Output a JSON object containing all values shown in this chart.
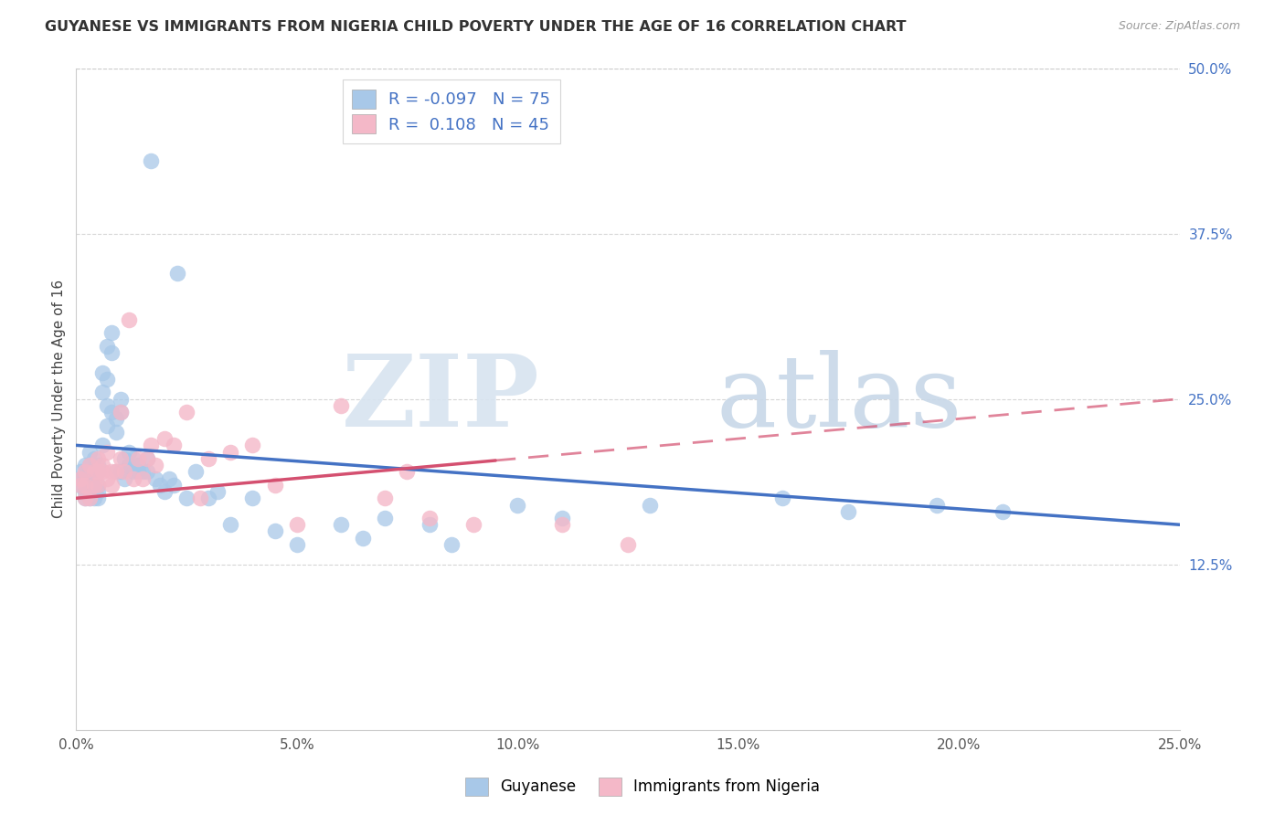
{
  "title": "GUYANESE VS IMMIGRANTS FROM NIGERIA CHILD POVERTY UNDER THE AGE OF 16 CORRELATION CHART",
  "source": "Source: ZipAtlas.com",
  "ylabel": "Child Poverty Under the Age of 16",
  "xlabel_ticks": [
    "0.0%",
    "5.0%",
    "10.0%",
    "15.0%",
    "20.0%",
    "25.0%"
  ],
  "ylabel_ticks_right": [
    "12.5%",
    "25.0%",
    "37.5%",
    "50.0%"
  ],
  "xlim": [
    0.0,
    0.25
  ],
  "ylim": [
    0.0,
    0.5
  ],
  "legend_label1": "Guyanese",
  "legend_label2": "Immigrants from Nigeria",
  "R1": "-0.097",
  "N1": "75",
  "R2": "0.108",
  "N2": "45",
  "color1": "#a8c8e8",
  "color2": "#f4b8c8",
  "line_color1": "#4472c4",
  "line_color2": "#d45070",
  "background_color": "#ffffff",
  "grid_color": "#cccccc",
  "guyanese_x": [
    0.001,
    0.001,
    0.001,
    0.002,
    0.002,
    0.002,
    0.002,
    0.003,
    0.003,
    0.003,
    0.003,
    0.003,
    0.004,
    0.004,
    0.004,
    0.004,
    0.005,
    0.005,
    0.005,
    0.005,
    0.005,
    0.006,
    0.006,
    0.006,
    0.007,
    0.007,
    0.007,
    0.007,
    0.008,
    0.008,
    0.008,
    0.009,
    0.009,
    0.009,
    0.01,
    0.01,
    0.01,
    0.011,
    0.011,
    0.012,
    0.012,
    0.013,
    0.013,
    0.014,
    0.014,
    0.015,
    0.016,
    0.016,
    0.017,
    0.018,
    0.019,
    0.02,
    0.021,
    0.022,
    0.023,
    0.025,
    0.027,
    0.03,
    0.032,
    0.035,
    0.04,
    0.045,
    0.05,
    0.06,
    0.065,
    0.07,
    0.08,
    0.085,
    0.1,
    0.11,
    0.13,
    0.16,
    0.175,
    0.195,
    0.21
  ],
  "guyanese_y": [
    0.19,
    0.195,
    0.185,
    0.18,
    0.175,
    0.19,
    0.2,
    0.185,
    0.175,
    0.195,
    0.2,
    0.21,
    0.185,
    0.195,
    0.205,
    0.175,
    0.195,
    0.2,
    0.18,
    0.185,
    0.175,
    0.27,
    0.255,
    0.215,
    0.29,
    0.23,
    0.265,
    0.245,
    0.3,
    0.285,
    0.24,
    0.195,
    0.235,
    0.225,
    0.195,
    0.24,
    0.25,
    0.205,
    0.19,
    0.2,
    0.21,
    0.195,
    0.205,
    0.195,
    0.2,
    0.195,
    0.195,
    0.205,
    0.43,
    0.19,
    0.185,
    0.18,
    0.19,
    0.185,
    0.345,
    0.175,
    0.195,
    0.175,
    0.18,
    0.155,
    0.175,
    0.15,
    0.14,
    0.155,
    0.145,
    0.16,
    0.155,
    0.14,
    0.17,
    0.16,
    0.17,
    0.175,
    0.165,
    0.17,
    0.165
  ],
  "nigeria_x": [
    0.001,
    0.001,
    0.002,
    0.002,
    0.002,
    0.003,
    0.003,
    0.004,
    0.004,
    0.005,
    0.005,
    0.005,
    0.006,
    0.006,
    0.007,
    0.007,
    0.008,
    0.008,
    0.009,
    0.01,
    0.01,
    0.011,
    0.012,
    0.013,
    0.014,
    0.015,
    0.016,
    0.017,
    0.018,
    0.02,
    0.022,
    0.025,
    0.028,
    0.03,
    0.035,
    0.04,
    0.045,
    0.05,
    0.06,
    0.07,
    0.075,
    0.08,
    0.09,
    0.11,
    0.125
  ],
  "nigeria_y": [
    0.19,
    0.185,
    0.175,
    0.195,
    0.185,
    0.175,
    0.2,
    0.185,
    0.195,
    0.205,
    0.185,
    0.195,
    0.195,
    0.2,
    0.19,
    0.21,
    0.195,
    0.185,
    0.195,
    0.205,
    0.24,
    0.195,
    0.31,
    0.19,
    0.205,
    0.19,
    0.205,
    0.215,
    0.2,
    0.22,
    0.215,
    0.24,
    0.175,
    0.205,
    0.21,
    0.215,
    0.185,
    0.155,
    0.245,
    0.175,
    0.195,
    0.16,
    0.155,
    0.155,
    0.14
  ],
  "line1_x0": 0.0,
  "line1_y0": 0.215,
  "line1_x1": 0.25,
  "line1_y1": 0.155,
  "line2_x0": 0.0,
  "line2_y0": 0.175,
  "line2_x1": 0.25,
  "line2_y1": 0.25
}
